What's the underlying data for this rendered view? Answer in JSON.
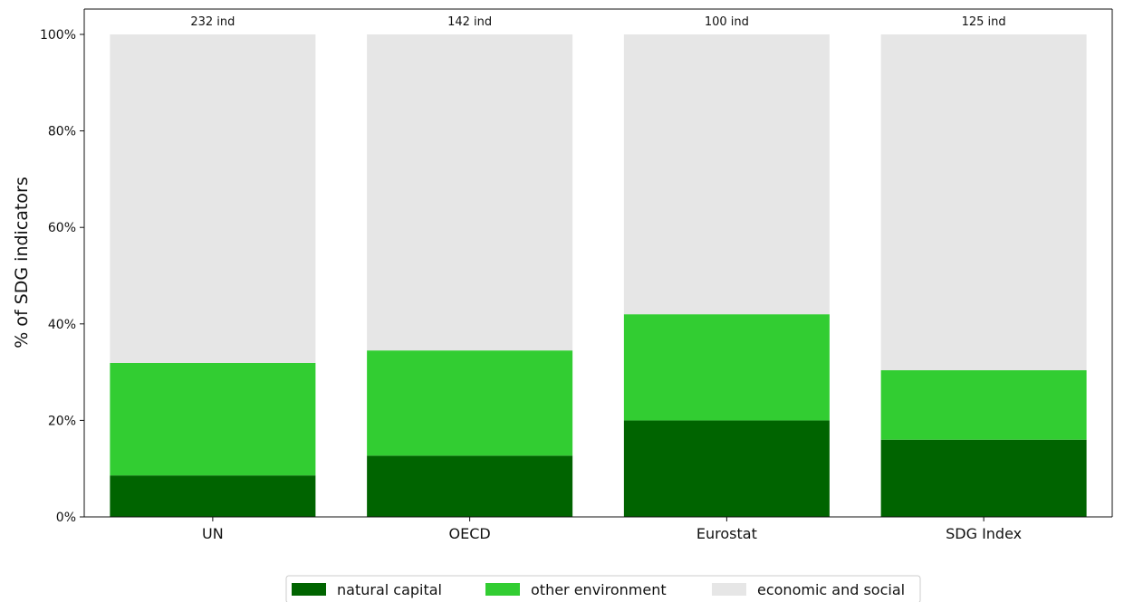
{
  "chart_data": {
    "type": "bar",
    "stacked": true,
    "categories": [
      "UN",
      "OECD",
      "Eurostat",
      "SDG Index"
    ],
    "series": [
      {
        "name": "natural capital",
        "values": [
          8.6,
          12.7,
          20.0,
          16.0
        ],
        "color": "#006400"
      },
      {
        "name": "other environment",
        "values": [
          23.3,
          21.8,
          22.0,
          14.4
        ],
        "color": "#32cd32"
      },
      {
        "name": "economic and social",
        "values": [
          68.1,
          65.5,
          58.0,
          69.6
        ],
        "color": "#e6e6e6"
      }
    ],
    "bar_labels": [
      "232 ind",
      "142 ind",
      "100 ind",
      "125 ind"
    ],
    "ylabel": "% of SDG indicators",
    "ylim": [
      0,
      100
    ],
    "yticks": [
      0,
      20,
      40,
      60,
      80,
      100
    ],
    "ytick_labels": [
      "0%",
      "20%",
      "40%",
      "60%",
      "80%",
      "100%"
    ],
    "legend_position": "bottom-center",
    "grid": false
  }
}
